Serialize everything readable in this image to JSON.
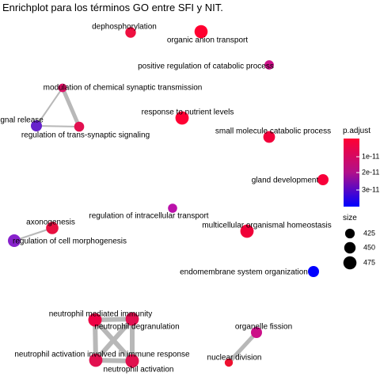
{
  "title": "Enrichplot para los términos GO entre SFI y NIT.",
  "chart_data": {
    "type": "network",
    "title": "Enrichplot para los términos GO entre SFI y NIT.",
    "grid": false,
    "color_scale": {
      "low": "#ff0033",
      "high": "#0000ff",
      "variable": "p.adjust"
    },
    "legend": {
      "color": {
        "title": "p.adjust",
        "ticks": [
          "1e-11",
          "2e-11",
          "3e-11"
        ],
        "placement": "right"
      },
      "size": {
        "title": "size",
        "ticks": [
          "425",
          "450",
          "475"
        ],
        "placement": "right"
      }
    },
    "nodes": [
      {
        "id": "dephosphorylation",
        "label": "dephosphorylation",
        "color": "#ee1040",
        "size": 440
      },
      {
        "id": "organic-anion-transport",
        "label": "organic anion transport",
        "color": "#ff0030",
        "size": 475
      },
      {
        "id": "positive-regulation-of-catabolic-process",
        "label": "positive regulation of catabolic process",
        "color": "#cc1188",
        "size": 420
      },
      {
        "id": "modulation-of-chemical-synaptic-transmission",
        "label": "modulation of chemical synaptic transmission",
        "color": "#dd1166",
        "size": 410
      },
      {
        "id": "signal-release",
        "label": "signal release",
        "color": "#6622cc",
        "size": 445
      },
      {
        "id": "regulation-of-trans-synaptic-signaling",
        "label": "regulation of trans-synaptic signaling",
        "color": "#e21050",
        "size": 430
      },
      {
        "id": "response-to-nutrient-levels",
        "label": "response to nutrient levels",
        "color": "#ff0033",
        "size": 478
      },
      {
        "id": "small-molecule-catabolic-process",
        "label": "small molecule catabolic process",
        "color": "#f2003a",
        "size": 455
      },
      {
        "id": "gland-development",
        "label": "gland development",
        "color": "#f8003a",
        "size": 445
      },
      {
        "id": "regulation-of-intracellular-transport",
        "label": "regulation of intracellular transport",
        "color": "#bb11aa",
        "size": 418
      },
      {
        "id": "axonogenesis",
        "label": "axonogenesis",
        "color": "#e81040",
        "size": 465
      },
      {
        "id": "regulation-of-cell-morphogenesis",
        "label": "regulation of cell morphogenesis",
        "color": "#8822cc",
        "size": 470
      },
      {
        "id": "multicellular-organismal-homeostasis",
        "label": "multicellular organismal homeostasis",
        "color": "#f00038",
        "size": 478
      },
      {
        "id": "endomembrane-system-organization",
        "label": "endomembrane system organization",
        "color": "#0000ff",
        "size": 445
      },
      {
        "id": "neutrophil-mediated-immunity",
        "label": "neutrophil mediated immunity",
        "color": "#ee0044",
        "size": 480
      },
      {
        "id": "neutrophil-degranulation",
        "label": "neutrophil degranulation",
        "color": "#e01050",
        "size": 478
      },
      {
        "id": "neutrophil-activation-involved-in-immune-response",
        "label": "neutrophil activation involved in immune response",
        "color": "#e21050",
        "size": 478
      },
      {
        "id": "neutrophil-activation",
        "label": "neutrophil activation",
        "color": "#e0104e",
        "size": 480
      },
      {
        "id": "organelle-fission",
        "label": "organelle fission",
        "color": "#cc1188",
        "size": 445
      },
      {
        "id": "nuclear-division",
        "label": "nuclear division",
        "color": "#ee1030",
        "size": 405
      }
    ],
    "edges": [
      {
        "source": "modulation-of-chemical-synaptic-transmission",
        "target": "signal-release",
        "weight": 2
      },
      {
        "source": "modulation-of-chemical-synaptic-transmission",
        "target": "regulation-of-trans-synaptic-signaling",
        "weight": 5
      },
      {
        "source": "signal-release",
        "target": "regulation-of-trans-synaptic-signaling",
        "weight": 2
      },
      {
        "source": "axonogenesis",
        "target": "regulation-of-cell-morphogenesis",
        "weight": 2
      },
      {
        "source": "neutrophil-mediated-immunity",
        "target": "neutrophil-degranulation",
        "weight": 6
      },
      {
        "source": "neutrophil-mediated-immunity",
        "target": "neutrophil-activation-involved-in-immune-response",
        "weight": 6
      },
      {
        "source": "neutrophil-mediated-immunity",
        "target": "neutrophil-activation",
        "weight": 6
      },
      {
        "source": "neutrophil-degranulation",
        "target": "neutrophil-activation-involved-in-immune-response",
        "weight": 6
      },
      {
        "source": "neutrophil-degranulation",
        "target": "neutrophil-activation",
        "weight": 6
      },
      {
        "source": "neutrophil-activation-involved-in-immune-response",
        "target": "neutrophil-activation",
        "weight": 6
      },
      {
        "source": "organelle-fission",
        "target": "nuclear-division",
        "weight": 5
      }
    ]
  }
}
